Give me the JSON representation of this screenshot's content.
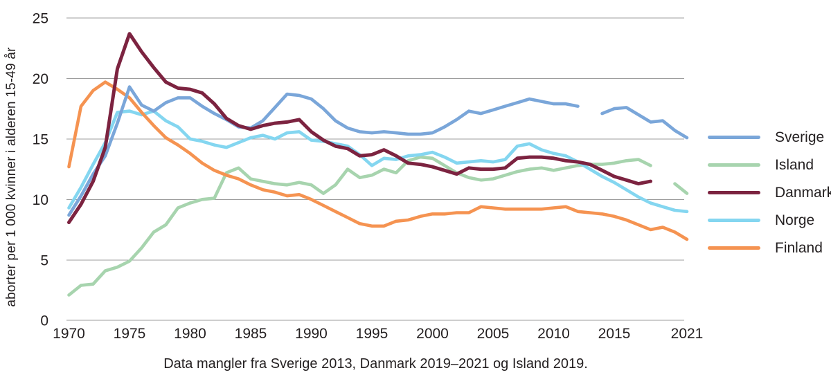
{
  "figure": {
    "caption": "Data mangler fra Sverige 2013, Danmark 2019–2021 og Island 2019.",
    "background_color": "#ffffff",
    "text_color": "#231f20",
    "gridline_color": "#9d9d9d"
  },
  "chart_data": {
    "type": "line",
    "title": "",
    "xlabel": "",
    "ylabel": "aborter per 1 000 kvinner i alderen 15-49 år",
    "ylim": [
      0,
      25
    ],
    "xlim": [
      1970,
      2021
    ],
    "y_ticks": [
      0,
      5,
      10,
      15,
      20,
      25
    ],
    "x_ticks": [
      1970,
      1975,
      1980,
      1985,
      1990,
      1995,
      2000,
      2005,
      2010,
      2015,
      2021
    ],
    "grid": "horizontal",
    "legend_position": "right",
    "missing_data_note": "Data mangler fra Sverige 2013, Danmark 2019–2021 og Island 2019.",
    "x": [
      1970,
      1971,
      1972,
      1973,
      1974,
      1975,
      1976,
      1977,
      1978,
      1979,
      1980,
      1981,
      1982,
      1983,
      1984,
      1985,
      1986,
      1987,
      1988,
      1989,
      1990,
      1991,
      1992,
      1993,
      1994,
      1995,
      1996,
      1997,
      1998,
      1999,
      2000,
      2001,
      2002,
      2003,
      2004,
      2005,
      2006,
      2007,
      2008,
      2009,
      2010,
      2011,
      2012,
      2013,
      2014,
      2015,
      2016,
      2017,
      2018,
      2019,
      2020,
      2021
    ],
    "series": [
      {
        "name": "Sverige",
        "color": "#7AA6D9",
        "values": [
          8.7,
          10.3,
          12.1,
          13.6,
          16.3,
          19.3,
          17.8,
          17.3,
          18.0,
          18.4,
          18.4,
          17.7,
          17.1,
          16.6,
          16.0,
          15.9,
          16.5,
          17.6,
          18.7,
          18.6,
          18.3,
          17.5,
          16.5,
          15.9,
          15.6,
          15.5,
          15.6,
          15.5,
          15.4,
          15.4,
          15.5,
          16.0,
          16.6,
          17.3,
          17.1,
          17.4,
          17.7,
          18.0,
          18.3,
          18.1,
          17.9,
          17.9,
          17.7,
          null,
          17.1,
          17.5,
          17.6,
          17.0,
          16.4,
          16.5,
          15.7,
          15.1
        ]
      },
      {
        "name": "Island",
        "color": "#A7D4AE",
        "values": [
          2.1,
          2.9,
          3.0,
          4.1,
          4.4,
          4.9,
          6.0,
          7.3,
          7.9,
          9.3,
          9.7,
          10.0,
          10.1,
          12.2,
          12.6,
          11.7,
          11.5,
          11.3,
          11.2,
          11.4,
          11.2,
          10.5,
          11.2,
          12.5,
          11.8,
          12.0,
          12.5,
          12.2,
          13.2,
          13.5,
          13.4,
          12.8,
          12.2,
          11.8,
          11.6,
          11.7,
          12.0,
          12.3,
          12.5,
          12.6,
          12.4,
          12.6,
          12.8,
          12.9,
          12.9,
          13.0,
          13.2,
          13.3,
          12.8,
          null,
          11.3,
          10.5
        ]
      },
      {
        "name": "Danmark",
        "color": "#7C2340",
        "values": [
          8.1,
          9.6,
          11.5,
          14.3,
          20.8,
          23.7,
          22.2,
          20.9,
          19.7,
          19.2,
          19.1,
          18.8,
          17.9,
          16.7,
          16.1,
          15.8,
          16.1,
          16.3,
          16.4,
          16.6,
          15.6,
          14.9,
          14.4,
          14.2,
          13.6,
          13.7,
          14.1,
          13.6,
          13.0,
          12.9,
          12.7,
          12.4,
          12.1,
          12.6,
          12.5,
          12.5,
          12.6,
          13.4,
          13.5,
          13.5,
          13.4,
          13.2,
          13.1,
          12.9,
          12.4,
          11.9,
          11.6,
          11.3,
          11.5,
          null,
          null,
          null
        ]
      },
      {
        "name": "Norge",
        "color": "#84D6F0",
        "values": [
          9.3,
          11.0,
          12.9,
          14.7,
          17.2,
          17.3,
          17.0,
          17.3,
          16.5,
          16.0,
          15.0,
          14.8,
          14.5,
          14.3,
          14.7,
          15.1,
          15.3,
          15.0,
          15.5,
          15.6,
          14.9,
          14.8,
          14.6,
          14.4,
          13.7,
          12.8,
          13.4,
          13.3,
          13.6,
          13.7,
          13.9,
          13.5,
          13.0,
          13.1,
          13.2,
          13.1,
          13.3,
          14.4,
          14.6,
          14.1,
          13.8,
          13.6,
          13.1,
          12.5,
          11.9,
          11.4,
          10.8,
          10.2,
          9.7,
          9.4,
          9.1,
          9.0
        ]
      },
      {
        "name": "Finland",
        "color": "#F59351",
        "values": [
          12.7,
          17.7,
          19.0,
          19.7,
          19.1,
          18.4,
          17.2,
          16.1,
          15.1,
          14.5,
          13.8,
          13.0,
          12.4,
          12.0,
          11.7,
          11.2,
          10.8,
          10.6,
          10.3,
          10.4,
          10.0,
          9.5,
          9.0,
          8.5,
          8.0,
          7.8,
          7.8,
          8.2,
          8.3,
          8.6,
          8.8,
          8.8,
          8.9,
          8.9,
          9.4,
          9.3,
          9.2,
          9.2,
          9.2,
          9.2,
          9.3,
          9.4,
          9.0,
          8.9,
          8.8,
          8.6,
          8.3,
          7.9,
          7.5,
          7.7,
          7.3,
          6.7
        ]
      }
    ]
  }
}
